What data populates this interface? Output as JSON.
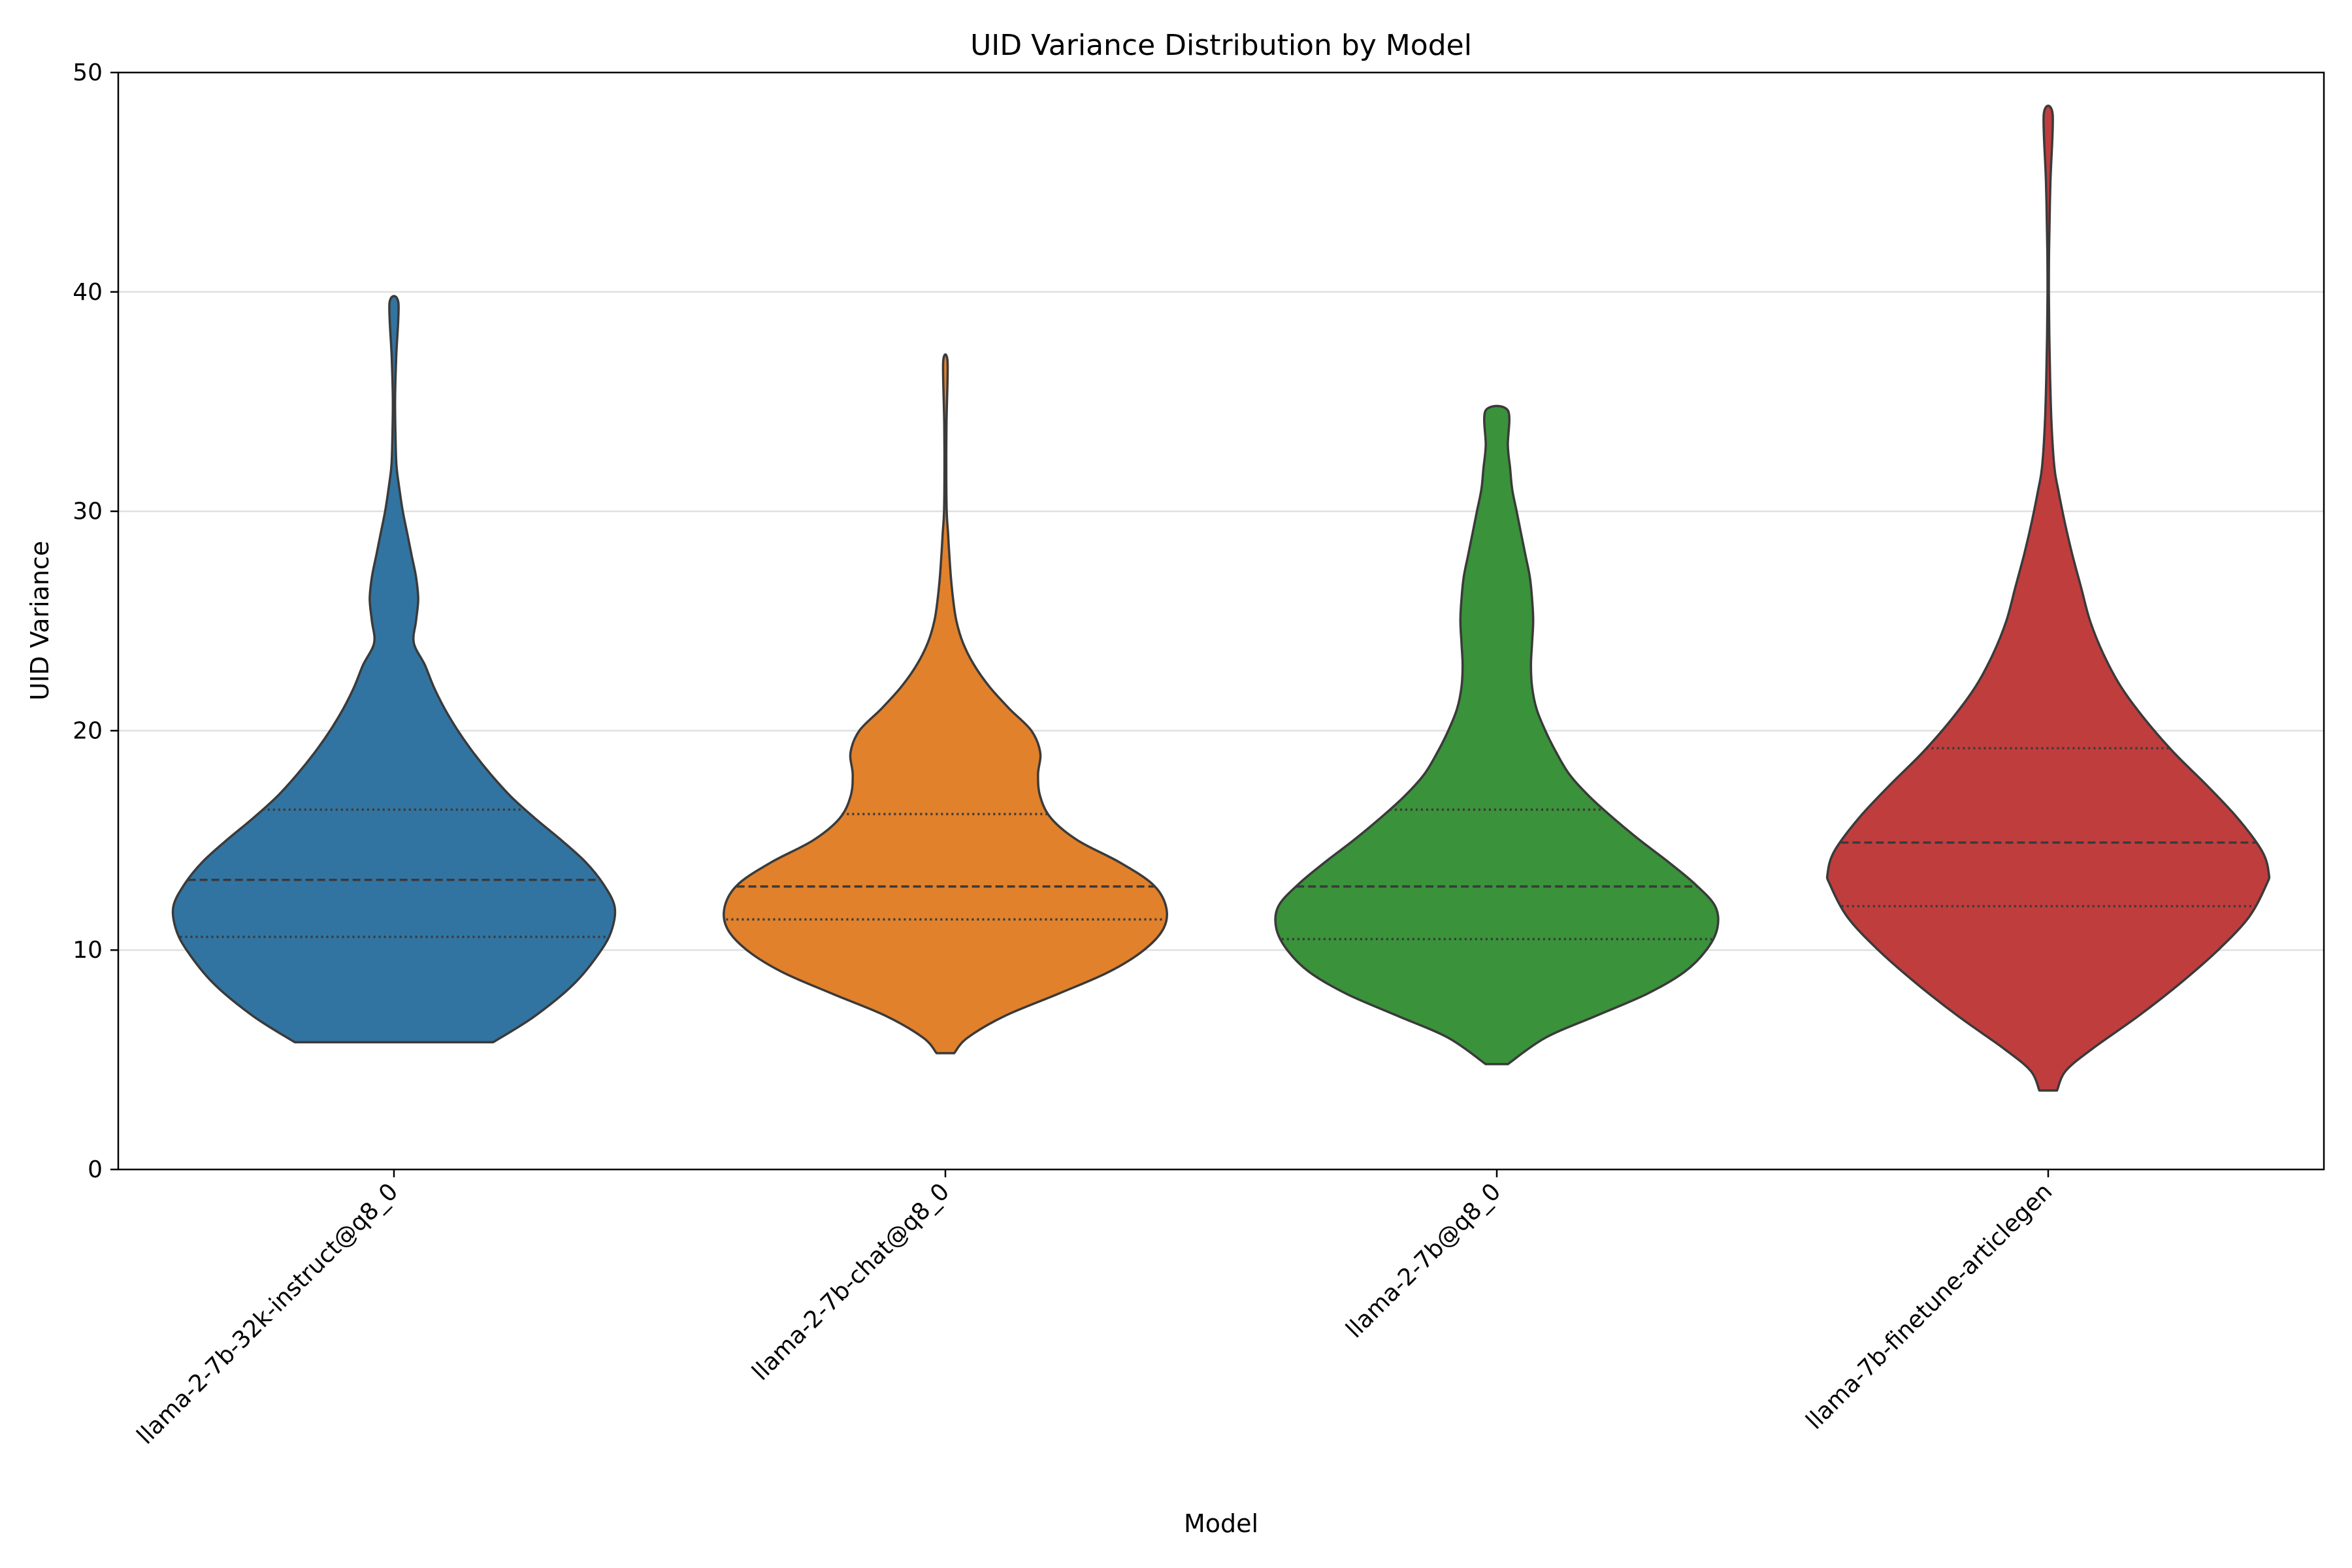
{
  "chart_data": {
    "type": "violin",
    "title": "UID Variance Distribution by Model",
    "xlabel": "Model",
    "ylabel": "UID Variance",
    "ylim": [
      0,
      50
    ],
    "yticks": [
      0,
      10,
      20,
      30,
      40,
      50
    ],
    "grid": "horizontal",
    "categories": [
      "llama-2-7b-32k-instruct@q8_0",
      "llama-2-7b-chat@q8_0",
      "llama-2-7b@q8_0",
      "llama-7b-finetune-articlegen"
    ],
    "colors": [
      "#3274a1",
      "#e1812c",
      "#3a923a",
      "#c03d3e"
    ],
    "series": [
      {
        "min": 5.8,
        "max": 39.5,
        "q1": 10.6,
        "median": 13.2,
        "q3": 16.4,
        "density": [
          [
            5.8,
            0.45
          ],
          [
            7,
            0.64
          ],
          [
            8.5,
            0.82
          ],
          [
            10,
            0.94
          ],
          [
            11,
            0.99
          ],
          [
            12,
            1.0
          ],
          [
            13,
            0.95
          ],
          [
            14,
            0.87
          ],
          [
            15,
            0.76
          ],
          [
            16,
            0.64
          ],
          [
            17,
            0.53
          ],
          [
            18,
            0.44
          ],
          [
            19,
            0.36
          ],
          [
            20,
            0.29
          ],
          [
            21,
            0.23
          ],
          [
            22,
            0.18
          ],
          [
            23,
            0.14
          ],
          [
            24,
            0.09
          ],
          [
            25,
            0.1
          ],
          [
            26,
            0.11
          ],
          [
            27,
            0.1
          ],
          [
            28,
            0.08
          ],
          [
            29,
            0.06
          ],
          [
            30,
            0.04
          ],
          [
            31,
            0.025
          ],
          [
            32,
            0.012
          ],
          [
            33,
            0.008
          ],
          [
            35,
            0.005
          ],
          [
            37,
            0.01
          ],
          [
            39.5,
            0.02
          ]
        ]
      },
      {
        "min": 5.3,
        "max": 36.8,
        "q1": 11.4,
        "median": 12.9,
        "q3": 16.2,
        "density": [
          [
            5.3,
            0.04
          ],
          [
            6,
            0.1
          ],
          [
            7,
            0.27
          ],
          [
            8,
            0.51
          ],
          [
            9,
            0.74
          ],
          [
            10,
            0.9
          ],
          [
            11,
            0.99
          ],
          [
            12,
            1.0
          ],
          [
            13,
            0.94
          ],
          [
            14,
            0.79
          ],
          [
            15,
            0.6
          ],
          [
            16,
            0.48
          ],
          [
            17,
            0.43
          ],
          [
            18,
            0.42
          ],
          [
            19,
            0.43
          ],
          [
            20,
            0.39
          ],
          [
            21,
            0.29
          ],
          [
            22,
            0.2
          ],
          [
            23,
            0.13
          ],
          [
            24,
            0.08
          ],
          [
            25,
            0.05
          ],
          [
            26,
            0.035
          ],
          [
            27,
            0.025
          ],
          [
            28,
            0.018
          ],
          [
            29,
            0.012
          ],
          [
            30,
            0.006
          ],
          [
            32,
            0.004
          ],
          [
            34,
            0.005
          ],
          [
            36.8,
            0.01
          ]
        ]
      },
      {
        "min": 4.8,
        "max": 34.6,
        "q1": 10.5,
        "median": 12.9,
        "q3": 16.4,
        "density": [
          [
            4.8,
            0.05
          ],
          [
            6,
            0.22
          ],
          [
            7,
            0.45
          ],
          [
            8,
            0.68
          ],
          [
            9,
            0.85
          ],
          [
            10,
            0.95
          ],
          [
            11,
            1.0
          ],
          [
            12,
            0.99
          ],
          [
            13,
            0.9
          ],
          [
            14,
            0.78
          ],
          [
            15,
            0.65
          ],
          [
            16,
            0.53
          ],
          [
            17,
            0.42
          ],
          [
            18,
            0.33
          ],
          [
            19,
            0.27
          ],
          [
            20,
            0.22
          ],
          [
            21,
            0.18
          ],
          [
            22,
            0.16
          ],
          [
            23,
            0.155
          ],
          [
            24,
            0.16
          ],
          [
            25,
            0.165
          ],
          [
            26,
            0.16
          ],
          [
            27,
            0.15
          ],
          [
            28,
            0.13
          ],
          [
            29,
            0.11
          ],
          [
            30,
            0.09
          ],
          [
            31,
            0.07
          ],
          [
            32,
            0.06
          ],
          [
            33,
            0.05
          ],
          [
            34.6,
            0.05
          ]
        ]
      },
      {
        "min": 3.6,
        "max": 48.1,
        "q1": 12.0,
        "median": 14.9,
        "q3": 19.2,
        "density": [
          [
            3.6,
            0.04
          ],
          [
            4.5,
            0.08
          ],
          [
            5.5,
            0.2
          ],
          [
            7,
            0.41
          ],
          [
            8.5,
            0.6
          ],
          [
            10,
            0.77
          ],
          [
            11.5,
            0.91
          ],
          [
            13,
            0.99
          ],
          [
            13.5,
            1.0
          ],
          [
            14.5,
            0.97
          ],
          [
            16,
            0.86
          ],
          [
            17.5,
            0.72
          ],
          [
            19,
            0.57
          ],
          [
            20.5,
            0.44
          ],
          [
            22,
            0.33
          ],
          [
            23.5,
            0.25
          ],
          [
            25,
            0.19
          ],
          [
            26.5,
            0.15
          ],
          [
            28,
            0.11
          ],
          [
            29.5,
            0.075
          ],
          [
            31,
            0.045
          ],
          [
            32,
            0.028
          ],
          [
            34,
            0.015
          ],
          [
            36,
            0.009
          ],
          [
            38,
            0.005
          ],
          [
            40,
            0.003
          ],
          [
            42,
            0.004
          ],
          [
            45,
            0.01
          ],
          [
            48.1,
            0.02
          ]
        ]
      }
    ]
  }
}
